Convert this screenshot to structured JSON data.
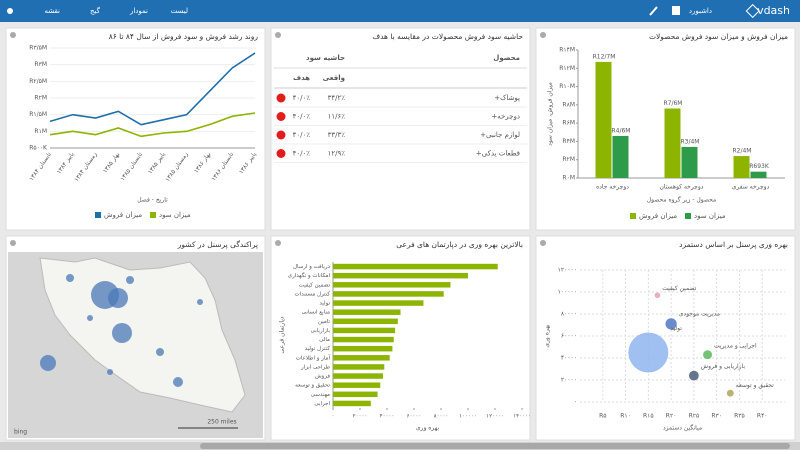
{
  "header": {
    "brand": "vdash",
    "menu_right": "داشبورد",
    "menu_left": [
      "لیست",
      "نمودار",
      "گیج",
      "نقشه"
    ]
  },
  "table": {
    "title": "حاشیه سود فروش محصولات در مقایسه با هدف",
    "columns": [
      "محصول",
      "حاشیه سود"
    ],
    "subcolumns": [
      "واقعی",
      "هدف"
    ],
    "rows": [
      [
        "+پوشاک",
        "۳۴/۲٪",
        "۴۰/۰٪"
      ],
      [
        "+دوچرخه",
        "۱۱/۶٪",
        "۴۰/۰٪"
      ],
      [
        "+لوازم جانبی",
        "۳۳/۳٪",
        "۴۰/۰٪"
      ],
      [
        "+قطعات یدکی",
        "۱۲/۹٪",
        "۴۰/۰٪"
      ]
    ]
  },
  "map": {
    "title": "پراکندگی پرسنل در کشور",
    "scale": "250 miles",
    "provider": "bing"
  },
  "chart_data": [
    {
      "type": "bar",
      "title": "میزان فروش و میزان سود فروش محصولات",
      "categories": [
        "دوچرخه جاده",
        "دوچرخه کوهستان",
        "دوچرخه سفری"
      ],
      "series": [
        {
          "name": "میزان فروش",
          "color": "#8cb400",
          "values": [
            12.7,
            7.6,
            2.4
          ],
          "value_labels": [
            "R12/7M",
            "R7/6M",
            "R2/4M"
          ]
        },
        {
          "name": "میزان سود",
          "color": "#2e9b4b",
          "values": [
            4.6,
            3.4,
            0.693
          ],
          "value_labels": [
            "R4/6M",
            "R3/4M",
            "R693K"
          ]
        }
      ],
      "ylim": [
        0,
        14
      ],
      "yticks": [
        {
          "value": 0,
          "label": "R۰M"
        },
        {
          "value": 2,
          "label": "R۲M"
        },
        {
          "value": 4,
          "label": "R۴M"
        },
        {
          "value": 6,
          "label": "R۶M"
        },
        {
          "value": 8,
          "label": "R۸M"
        },
        {
          "value": 10,
          "label": "R۱۰M"
        },
        {
          "value": 12,
          "label": "R۱۲M"
        },
        {
          "value": 14,
          "label": "R۱۴M"
        }
      ],
      "ylabel": "میزان فروش، میزان سود",
      "xlabel": "محصول - زیر گروه محصول"
    },
    {
      "type": "line",
      "title": "روند رشد فروش و سود فروش از سال ۸۴ تا ۸۶",
      "categories": [
        "تابستان ۱۳۸۴",
        "پاییز ۱۳۸۴",
        "زمستان ۱۳۸۴",
        "بهار ۱۳۸۵",
        "تابستان ۱۳۸۵",
        "پاییز ۱۳۸۵",
        "زمستان ۱۳۸۵",
        "بهار ۱۳۸۶",
        "تابستان ۱۳۸۶",
        "پاییز ۱۳۸۶"
      ],
      "series": [
        {
          "name": "میزان فروش",
          "color": "#1f6fa8",
          "values": [
            1.3,
            1.5,
            1.4,
            1.6,
            1.2,
            1.35,
            1.5,
            2.2,
            2.9,
            3.35
          ]
        },
        {
          "name": "میزان سود",
          "color": "#8cb400",
          "values": [
            0.9,
            1.0,
            0.9,
            1.1,
            0.85,
            0.95,
            1.0,
            1.2,
            1.45,
            1.55
          ]
        }
      ],
      "ylim": [
        0.5,
        3.5
      ],
      "yticks": [
        {
          "value": 0.5,
          "label": "R۵۰۰K"
        },
        {
          "value": 1,
          "label": "R۱M"
        },
        {
          "value": 1.5,
          "label": "R۱/۵M"
        },
        {
          "value": 2,
          "label": "R۲M"
        },
        {
          "value": 2.5,
          "label": "R۲/۵M"
        },
        {
          "value": 3,
          "label": "R۳M"
        },
        {
          "value": 3.5,
          "label": "R۳/۵M"
        }
      ],
      "xlabel": "تاریخ - فصل"
    },
    {
      "type": "scatter",
      "title": "بهره وری پرسنل بر اساس دستمزد",
      "labels": [
        "تضمین کیفیت",
        "مدیریت موجودی",
        "تولید",
        "اجرایی و مدیریت",
        "بازاریابی و فروش",
        "تحقیق و توسعه"
      ],
      "x": [
        17,
        20,
        15,
        28,
        25,
        33
      ],
      "values": [
        97000,
        71000,
        45000,
        43000,
        24000,
        8000
      ],
      "sizes": [
        2,
        8,
        100,
        5,
        6,
        3
      ],
      "colors": [
        "#e6a1b4",
        "#4f78c4",
        "#8fb5ee",
        "#5cb85c",
        "#4b5e7a",
        "#b2a559"
      ],
      "xlim": [
        0,
        45
      ],
      "xticks": [
        {
          "value": 5,
          "label": "R۵"
        },
        {
          "value": 10,
          "label": "R۱۰"
        },
        {
          "value": 15,
          "label": "R۱۵"
        },
        {
          "value": 20,
          "label": "R۲۰"
        },
        {
          "value": 25,
          "label": "R۲۵"
        },
        {
          "value": 30,
          "label": "R۳۰"
        },
        {
          "value": 35,
          "label": "R۳۵"
        },
        {
          "value": 40,
          "label": "R۴۰"
        }
      ],
      "ylim": [
        0,
        120000
      ],
      "yticks": [
        {
          "value": 0,
          "label": "۰"
        },
        {
          "value": 20000,
          "label": "۲۰۰۰۰"
        },
        {
          "value": 40000,
          "label": "۴۰۰۰۰"
        },
        {
          "value": 60000,
          "label": "۶۰۰۰۰"
        },
        {
          "value": 80000,
          "label": "۸۰۰۰۰"
        },
        {
          "value": 100000,
          "label": "۱۰۰۰۰۰"
        },
        {
          "value": 120000,
          "label": "۱۲۰۰۰۰"
        }
      ],
      "xlabel": "میانگین دستمزد",
      "ylabel": "بهره وری"
    },
    {
      "type": "hbar",
      "title": "بالاترین بهره وری در دپارتمان های فرعی",
      "categories": [
        "دریافت و ارسال",
        "امکانات و نگهداری",
        "تضمین کیفیت",
        "کنترل مستندات",
        "تولید",
        "منابع انسانی",
        "تامین",
        "بازاریابی",
        "مالی",
        "کنترل تولید",
        "آمار و اطلاعات",
        "طراحی ابزار",
        "فروش",
        "تحقیق و توسعه",
        "مهندسی",
        "اجرایی"
      ],
      "values": [
        122000,
        100000,
        87000,
        82000,
        67000,
        50000,
        48000,
        46000,
        45000,
        44000,
        42000,
        38000,
        37000,
        35000,
        33000,
        28000
      ],
      "color": "#8cb400",
      "xlim": [
        0,
        140000
      ],
      "xticks": [
        {
          "value": 0,
          "label": "۰"
        },
        {
          "value": 20000,
          "label": "۲۰۰۰۰"
        },
        {
          "value": 40000,
          "label": "۴۰۰۰۰"
        },
        {
          "value": 60000,
          "label": "۶۰۰۰۰"
        },
        {
          "value": 80000,
          "label": "۸۰۰۰۰"
        },
        {
          "value": 100000,
          "label": "۱۰۰۰۰۰"
        },
        {
          "value": 120000,
          "label": "۱۲۰۰۰۰"
        },
        {
          "value": 140000,
          "label": "۱۴۰۰۰۰"
        }
      ],
      "xlabel": "بهره وری",
      "ylabel": "دپارتمان فرعی"
    }
  ]
}
